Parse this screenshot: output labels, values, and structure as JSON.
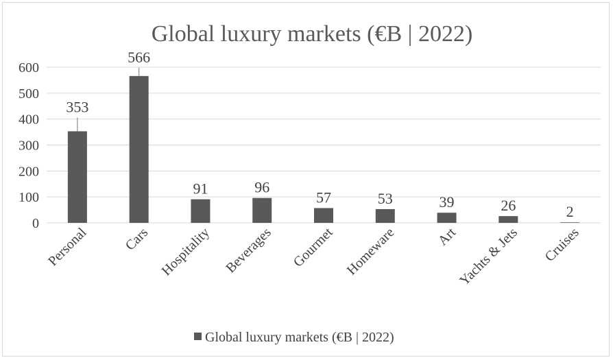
{
  "chart_data": {
    "type": "bar",
    "title": "Global luxury markets (€B | 2022)",
    "categories": [
      "Personal",
      "Cars",
      "Hospitality",
      "Beverages",
      "Gourmet",
      "Homeware",
      "Art",
      "Yachts & Jets",
      "Cruises"
    ],
    "series": [
      {
        "name": "Global luxury markets (€B | 2022)",
        "values": [
          353,
          566,
          91,
          96,
          57,
          53,
          39,
          26,
          2
        ],
        "data_labels": [
          "353",
          "566",
          "91",
          "96",
          "57",
          "53",
          "39",
          "26",
          "2"
        ],
        "color": "#595959"
      }
    ],
    "ylim": [
      0,
      600
    ],
    "yticks": [
      "0",
      "100",
      "200",
      "300",
      "400",
      "500",
      "600"
    ],
    "error_bars": [
      {
        "category": "Personal",
        "upper": 406
      },
      {
        "category": "Cars",
        "upper": 598
      }
    ],
    "grid": true,
    "legend": "bottom",
    "xlabel": "",
    "ylabel": ""
  }
}
